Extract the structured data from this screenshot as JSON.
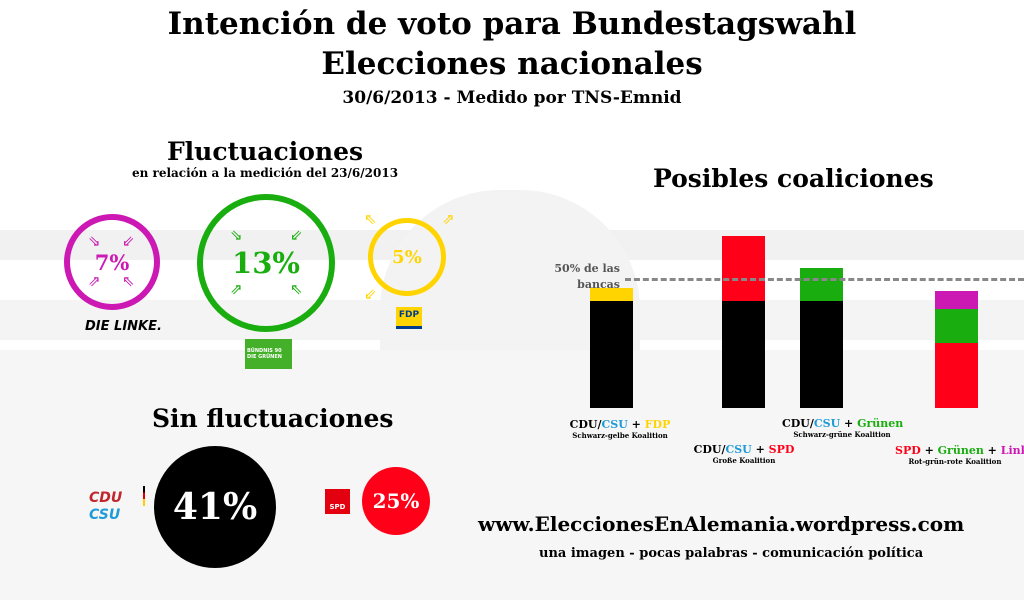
{
  "header": {
    "title1": "Intención de voto para Bundestagswahl",
    "title2": "Elecciones nacionales",
    "subtitle": "30/6/2013 - Medido por TNS-Emnid"
  },
  "fluct": {
    "title": "Fluctuaciones",
    "subtitle": "en relación a la medición del 23/6/2013",
    "items": [
      {
        "party": "DIE LINKE.",
        "value": "7%",
        "color": "#cc19b4"
      },
      {
        "party": "BÜNDNIS 90 DIE GRÜNEN",
        "value": "13%",
        "color": "#1aad0f"
      },
      {
        "party": "FDP",
        "value": "5%",
        "color": "#ffd400"
      }
    ]
  },
  "sin": {
    "title": "Sin fluctuaciones",
    "items": [
      {
        "party1": "CDU",
        "party2": "CSU",
        "value": "41%",
        "color": "#000000"
      },
      {
        "party1": "SPD",
        "value": "25%",
        "color": "#ff0019"
      }
    ]
  },
  "coal": {
    "title": "Posibles coaliciones",
    "threshold_label1": "50% de las",
    "threshold_label2": "bancas"
  },
  "chart_data": {
    "type": "bar",
    "stacked": true,
    "threshold": 50,
    "ylim": [
      0,
      70
    ],
    "categories": [
      "Schwarz-gelbe Koalition",
      "Große Koalition",
      "Schwarz-grüne Koalition",
      "Rot-grün-rote Koalition"
    ],
    "bars": [
      {
        "parties": [
          "CDU/CSU",
          "FDP"
        ],
        "values": [
          41,
          5
        ],
        "colors": [
          "#000000",
          "#ffd400"
        ],
        "subtitle": "Schwarz-gelbe Koalition"
      },
      {
        "parties": [
          "CDU/CSU",
          "SPD"
        ],
        "values": [
          41,
          25
        ],
        "colors": [
          "#000000",
          "#ff0019"
        ],
        "subtitle": "Große Koalition"
      },
      {
        "parties": [
          "CDU/CSU",
          "Grünen"
        ],
        "values": [
          41,
          13
        ],
        "colors": [
          "#000000",
          "#1aad0f"
        ],
        "subtitle": "Schwarz-grüne Koalition"
      },
      {
        "parties": [
          "SPD",
          "Grünen",
          "Linke"
        ],
        "values": [
          25,
          13,
          7
        ],
        "colors": [
          "#ff0019",
          "#1aad0f",
          "#cc19b4"
        ],
        "subtitle": "Rot-grün-rote Koalition"
      }
    ]
  },
  "footer": {
    "url": "www.EleccionesEnAlemania.wordpress.com",
    "tagline": "una imagen - pocas palabras - comunicación política"
  },
  "labels": {
    "plus": "+",
    "slash": "/",
    "csu": "CSU",
    "cdu": "CDU"
  }
}
